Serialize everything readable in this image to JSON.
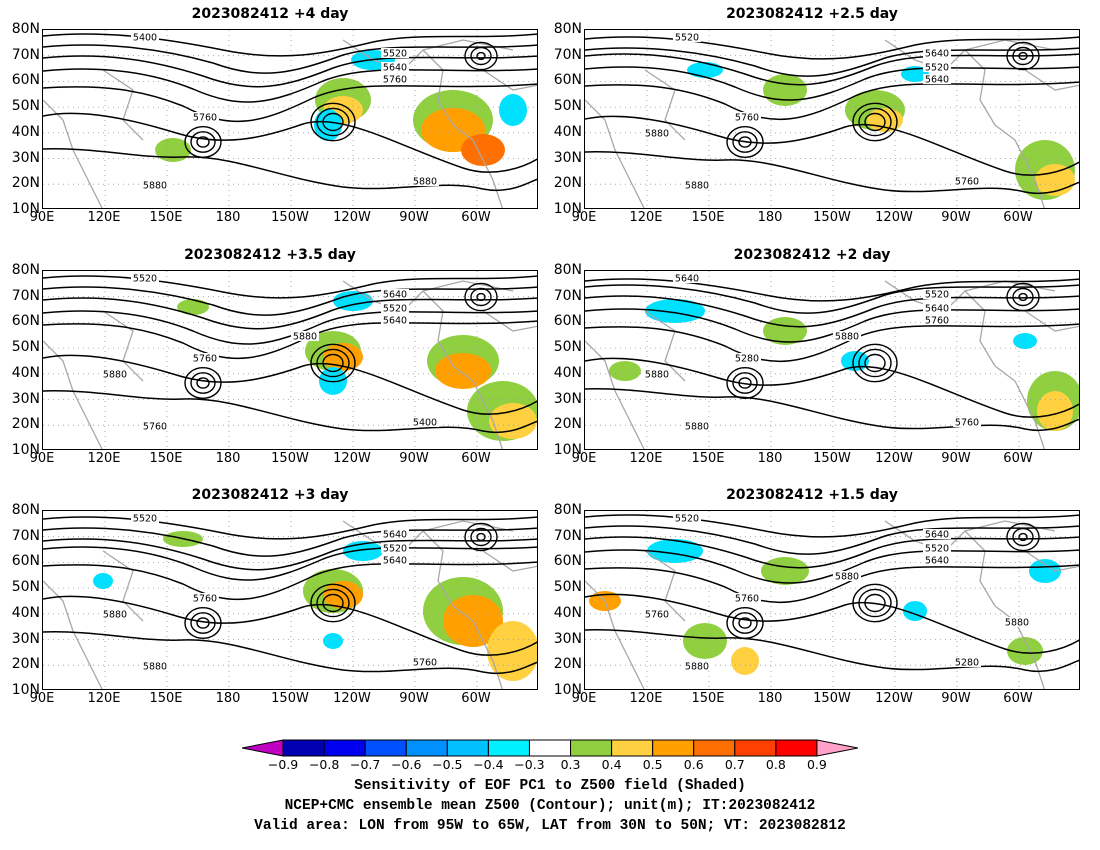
{
  "panels": [
    {
      "title": "2023082412  +4 day",
      "contours": [
        "5400",
        "5520",
        "5640",
        "5760",
        "5760",
        "5880",
        "5880"
      ]
    },
    {
      "title": "2023082412  +2.5 day",
      "contours": [
        "5520",
        "5640",
        "5520",
        "5640",
        "5760",
        "5760",
        "5880",
        "5880"
      ]
    },
    {
      "title": "2023082412  +3.5 day",
      "contours": [
        "5520",
        "5640",
        "5520",
        "5640",
        "5760",
        "5400",
        "5760",
        "5880",
        "5880"
      ]
    },
    {
      "title": "2023082412  +2 day",
      "contours": [
        "5640",
        "5520",
        "5640",
        "5760",
        "5280",
        "5760",
        "5880",
        "5880",
        "5880"
      ]
    },
    {
      "title": "2023082412  +3 day",
      "contours": [
        "5520",
        "5640",
        "5520",
        "5640",
        "5760",
        "5760",
        "5880",
        "5880"
      ]
    },
    {
      "title": "2023082412  +1.5 day",
      "contours": [
        "5520",
        "5640",
        "5520",
        "5640",
        "5760",
        "5280",
        "5880",
        "5760",
        "5880",
        "5880"
      ]
    }
  ],
  "y_axis": [
    "80N",
    "70N",
    "60N",
    "50N",
    "40N",
    "30N",
    "20N",
    "10N"
  ],
  "x_axis": [
    "90E",
    "120E",
    "150E",
    "180",
    "150W",
    "120W",
    "90W",
    "60W"
  ],
  "colorbar": {
    "ticks": [
      "−0.9",
      "−0.8",
      "−0.7",
      "−0.6",
      "−0.5",
      "−0.4",
      "−0.3",
      "0.3",
      "0.4",
      "0.5",
      "0.6",
      "0.7",
      "0.8",
      "0.9"
    ],
    "colors": [
      "#c000c0",
      "#0000b0",
      "#0000f0",
      "#0050ff",
      "#0090ff",
      "#00c0ff",
      "#00f0ff",
      "#ffffff",
      "#90d040",
      "#ffd040",
      "#ffa000",
      "#ff7000",
      "#ff4000",
      "#ff0000",
      "#ffa0c8"
    ]
  },
  "caption": {
    "line1": "Sensitivity of EOF PC1 to Z500 field (Shaded)",
    "line2": "NCEP+CMC ensemble mean Z500 (Contour); unit(m); IT:2023082412",
    "line3": "Valid area: LON from 95W to 65W, LAT from 30N to 50N; VT: 2023082812"
  }
}
